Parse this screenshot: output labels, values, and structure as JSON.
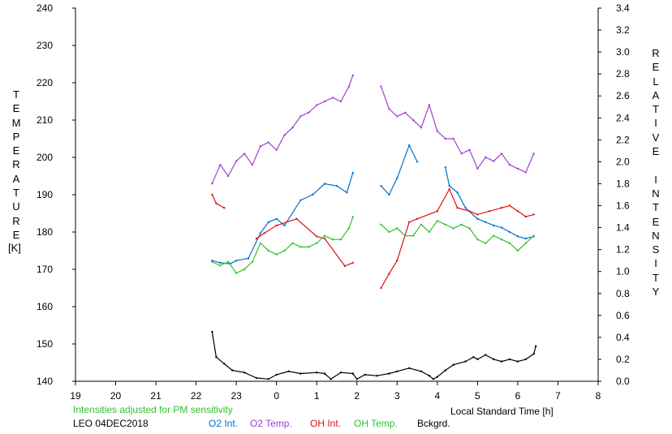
{
  "chart_data": {
    "type": "line",
    "x_axis": {
      "label": "Local Standard Time [h]",
      "range": [
        19,
        32
      ],
      "ticks": [
        19,
        20,
        21,
        22,
        23,
        24,
        25,
        26,
        27,
        28,
        29,
        30,
        31,
        32
      ],
      "tick_labels": [
        "19",
        "20",
        "21",
        "22",
        "23",
        "0",
        "1",
        "2",
        "3",
        "4",
        "5",
        "6",
        "7",
        "8"
      ]
    },
    "y_left": {
      "label": "TEMPERATURE",
      "unit": "[K]",
      "range": [
        140,
        240
      ],
      "ticks": [
        140,
        150,
        160,
        170,
        180,
        190,
        200,
        210,
        220,
        230,
        240
      ]
    },
    "y_right": {
      "label": "RELATIVE INTENSITY",
      "range": [
        0.0,
        3.4
      ],
      "ticks": [
        0.0,
        0.2,
        0.4,
        0.6,
        0.8,
        1.0,
        1.2,
        1.4,
        1.6,
        1.8,
        2.0,
        2.2,
        2.4,
        2.6,
        2.8,
        3.0,
        3.2,
        3.4
      ],
      "tick_labels": [
        "0.0",
        "0.2",
        "0.4",
        "0.6",
        "0.8",
        "1.0",
        "1.2",
        "1.4",
        "1.6",
        "1.8",
        "2.0",
        "2.2",
        "2.4",
        "2.6",
        "2.8",
        "3.0",
        "3.2",
        "3.4"
      ]
    },
    "grid": false,
    "series": [
      {
        "name": "O2 Int.",
        "axis": "right",
        "color": "#0070d0",
        "points": [
          [
            22.4,
            1.1
          ],
          [
            22.6,
            1.08
          ],
          [
            22.85,
            1.07
          ],
          [
            23.0,
            1.1
          ],
          [
            23.3,
            1.12
          ],
          [
            23.6,
            1.35
          ],
          [
            23.8,
            1.45
          ],
          [
            24.0,
            1.48
          ],
          [
            24.2,
            1.42
          ],
          [
            24.6,
            1.65
          ],
          [
            24.9,
            1.7
          ],
          [
            25.2,
            1.8
          ],
          [
            25.5,
            1.78
          ],
          [
            25.75,
            1.72
          ],
          [
            25.9,
            1.9
          ],
          [
            26.6,
            1.78
          ],
          [
            26.8,
            1.7
          ],
          [
            27.0,
            1.85
          ],
          [
            27.3,
            2.15
          ],
          [
            27.5,
            2.0
          ],
          [
            28.2,
            1.95
          ],
          [
            28.3,
            1.78
          ],
          [
            28.5,
            1.72
          ],
          [
            28.7,
            1.58
          ],
          [
            29.0,
            1.48
          ],
          [
            29.2,
            1.45
          ],
          [
            29.4,
            1.42
          ],
          [
            29.6,
            1.4
          ],
          [
            29.8,
            1.36
          ],
          [
            30.0,
            1.32
          ],
          [
            30.2,
            1.3
          ],
          [
            30.4,
            1.32
          ]
        ]
      },
      {
        "name": "O2 Temp.",
        "axis": "left",
        "color": "#a040d0",
        "points": [
          [
            22.4,
            193
          ],
          [
            22.6,
            198
          ],
          [
            22.8,
            195
          ],
          [
            23.0,
            199
          ],
          [
            23.2,
            201
          ],
          [
            23.4,
            198
          ],
          [
            23.6,
            203
          ],
          [
            23.8,
            204
          ],
          [
            24.0,
            202
          ],
          [
            24.2,
            206
          ],
          [
            24.4,
            208
          ],
          [
            24.6,
            211
          ],
          [
            24.8,
            212
          ],
          [
            25.0,
            214
          ],
          [
            25.2,
            215
          ],
          [
            25.4,
            216
          ],
          [
            25.6,
            215
          ],
          [
            25.8,
            219
          ],
          [
            25.9,
            222
          ],
          [
            26.6,
            219
          ],
          [
            26.8,
            213
          ],
          [
            27.0,
            211
          ],
          [
            27.2,
            212
          ],
          [
            27.4,
            210
          ],
          [
            27.6,
            208
          ],
          [
            27.8,
            214
          ],
          [
            28.0,
            207
          ],
          [
            28.2,
            205
          ],
          [
            28.4,
            205
          ],
          [
            28.6,
            201
          ],
          [
            28.8,
            202
          ],
          [
            29.0,
            197
          ],
          [
            29.2,
            200
          ],
          [
            29.4,
            199
          ],
          [
            29.6,
            201
          ],
          [
            29.8,
            198
          ],
          [
            30.0,
            197
          ],
          [
            30.2,
            196
          ],
          [
            30.4,
            201
          ]
        ]
      },
      {
        "name": "OH Int.",
        "axis": "right",
        "color": "#e01010",
        "points": [
          [
            22.4,
            1.7
          ],
          [
            22.5,
            1.62
          ],
          [
            22.7,
            1.58
          ],
          [
            23.5,
            1.3
          ],
          [
            23.7,
            1.35
          ],
          [
            24.0,
            1.42
          ],
          [
            24.5,
            1.48
          ],
          [
            25.0,
            1.32
          ],
          [
            25.2,
            1.3
          ],
          [
            25.7,
            1.05
          ],
          [
            25.9,
            1.08
          ],
          [
            26.6,
            0.85
          ],
          [
            26.8,
            0.98
          ],
          [
            27.0,
            1.1
          ],
          [
            27.3,
            1.45
          ],
          [
            27.5,
            1.48
          ],
          [
            28.0,
            1.55
          ],
          [
            28.3,
            1.75
          ],
          [
            28.5,
            1.58
          ],
          [
            28.8,
            1.55
          ],
          [
            29.0,
            1.52
          ],
          [
            29.3,
            1.55
          ],
          [
            29.6,
            1.58
          ],
          [
            29.8,
            1.6
          ],
          [
            30.0,
            1.55
          ],
          [
            30.2,
            1.5
          ],
          [
            30.4,
            1.52
          ]
        ]
      },
      {
        "name": "OH Temp.",
        "axis": "left",
        "color": "#30c030",
        "points": [
          [
            22.4,
            172
          ],
          [
            22.6,
            171
          ],
          [
            22.8,
            172
          ],
          [
            23.0,
            169
          ],
          [
            23.2,
            170
          ],
          [
            23.4,
            172
          ],
          [
            23.6,
            177
          ],
          [
            23.8,
            175
          ],
          [
            24.0,
            174
          ],
          [
            24.2,
            175
          ],
          [
            24.4,
            177
          ],
          [
            24.6,
            176
          ],
          [
            24.8,
            176
          ],
          [
            25.0,
            177
          ],
          [
            25.2,
            179
          ],
          [
            25.4,
            178
          ],
          [
            25.6,
            178
          ],
          [
            25.8,
            181
          ],
          [
            25.9,
            184
          ],
          [
            26.6,
            182
          ],
          [
            26.8,
            180
          ],
          [
            27.0,
            181
          ],
          [
            27.2,
            179
          ],
          [
            27.4,
            179
          ],
          [
            27.6,
            182
          ],
          [
            27.8,
            180
          ],
          [
            28.0,
            183
          ],
          [
            28.2,
            182
          ],
          [
            28.4,
            181
          ],
          [
            28.6,
            182
          ],
          [
            28.8,
            181
          ],
          [
            29.0,
            178
          ],
          [
            29.2,
            177
          ],
          [
            29.4,
            179
          ],
          [
            29.6,
            178
          ],
          [
            29.8,
            177
          ],
          [
            30.0,
            175
          ],
          [
            30.2,
            177
          ],
          [
            30.4,
            179
          ]
        ]
      },
      {
        "name": "Bckgrd.",
        "axis": "right",
        "color": "#000000",
        "points": [
          [
            22.4,
            0.45
          ],
          [
            22.5,
            0.22
          ],
          [
            22.7,
            0.16
          ],
          [
            22.9,
            0.1
          ],
          [
            23.2,
            0.08
          ],
          [
            23.5,
            0.03
          ],
          [
            23.8,
            0.02
          ],
          [
            24.0,
            0.06
          ],
          [
            24.3,
            0.09
          ],
          [
            24.6,
            0.07
          ],
          [
            25.0,
            0.08
          ],
          [
            25.2,
            0.07
          ],
          [
            25.35,
            0.02
          ],
          [
            25.6,
            0.08
          ],
          [
            25.9,
            0.07
          ],
          [
            26.0,
            0.02
          ],
          [
            26.2,
            0.06
          ],
          [
            26.5,
            0.05
          ],
          [
            26.8,
            0.07
          ],
          [
            27.0,
            0.09
          ],
          [
            27.3,
            0.12
          ],
          [
            27.6,
            0.09
          ],
          [
            27.8,
            0.05
          ],
          [
            27.9,
            0.02
          ],
          [
            28.0,
            0.04
          ],
          [
            28.2,
            0.1
          ],
          [
            28.4,
            0.15
          ],
          [
            28.7,
            0.18
          ],
          [
            28.9,
            0.22
          ],
          [
            29.0,
            0.2
          ],
          [
            29.2,
            0.24
          ],
          [
            29.4,
            0.2
          ],
          [
            29.6,
            0.18
          ],
          [
            29.8,
            0.2
          ],
          [
            30.0,
            0.18
          ],
          [
            30.2,
            0.2
          ],
          [
            30.4,
            0.25
          ],
          [
            30.45,
            0.32
          ]
        ]
      }
    ],
    "annotation": "Intensities adjusted for PM sensitivity",
    "annotation_color": "#30c030",
    "station": "LEO 04DEC2018"
  }
}
